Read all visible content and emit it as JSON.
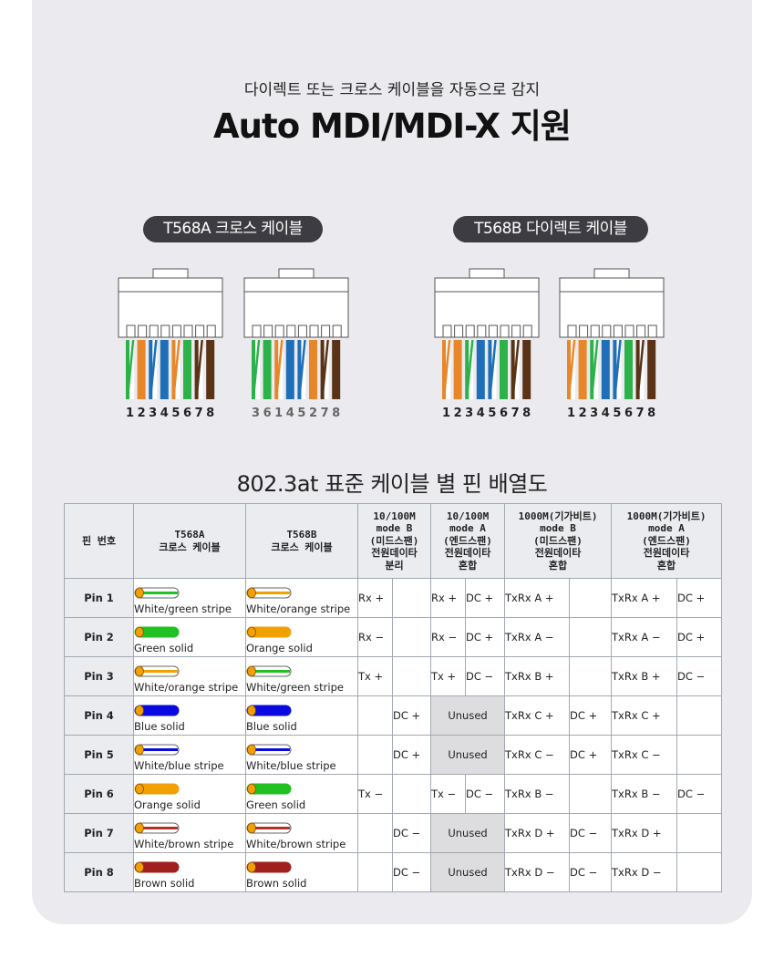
{
  "header": {
    "subtitle": "다이렉트 또는 크로스 케이블을 자동으로 감지",
    "title": "Auto MDI/MDI-X 지원"
  },
  "diagram": {
    "groups": [
      {
        "label": "T568A 크로스 케이블",
        "connectors": [
          {
            "numbers": "12345678",
            "wires": [
              "wg",
              "go",
              "wb",
              "b",
              "ow",
              "g",
              "wbr",
              "br"
            ]
          },
          {
            "numbers": "36145278",
            "wires": [
              "wg",
              "g",
              "wo",
              "b",
              "wb",
              "o",
              "wbr",
              "br"
            ]
          }
        ]
      },
      {
        "label": "T568B 다이렉트 케이블",
        "connectors": [
          {
            "numbers": "12345678",
            "wires": [
              "wo",
              "o",
              "wg",
              "b",
              "wb",
              "g",
              "wbr",
              "br"
            ]
          },
          {
            "numbers": "12345678",
            "wires": [
              "wo",
              "o",
              "wg",
              "b",
              "wb",
              "g",
              "wbr",
              "br"
            ]
          }
        ]
      }
    ],
    "colors": {
      "orange": "#e8862a",
      "green": "#2db24a",
      "blue": "#1e6fb8",
      "brown": "#5a3216"
    }
  },
  "table": {
    "heading": "802.3at 표준 케이블 별 핀 배열도",
    "headers": [
      [
        "핀 번호"
      ],
      [
        "T568A",
        "크로스 케이블"
      ],
      [
        "T568B",
        "크로스 케이블"
      ],
      [
        "10/100M",
        "mode B",
        "(미드스팬)",
        "전원데이타",
        "분리"
      ],
      [
        "10/100M",
        "mode A",
        "(엔드스팬)",
        "전원데이타",
        "혼합"
      ],
      [
        "1000M(기가비트)",
        "mode B",
        "(미드스팬)",
        "전원데이타",
        "혼합"
      ],
      [
        "1000M(기가비트)",
        "mode A",
        "(엔드스팬)",
        "전원데이타",
        "혼합"
      ]
    ],
    "unused_label": "Unused",
    "rows": [
      {
        "pin": "Pin 1",
        "a": {
          "text": "White/green stripe",
          "color": "#22c022",
          "stripe": true
        },
        "b": {
          "text": "White/orange stripe",
          "color": "#f0a000",
          "stripe": true
        },
        "m10b": [
          "Rx +",
          ""
        ],
        "m10a": [
          "Rx +",
          "DC +"
        ],
        "g1b": [
          "TxRx A +",
          ""
        ],
        "g1a": [
          "TxRx A +",
          "DC +"
        ]
      },
      {
        "pin": "Pin 2",
        "a": {
          "text": "Green solid",
          "color": "#22c022",
          "stripe": false
        },
        "b": {
          "text": "Orange solid",
          "color": "#f0a000",
          "stripe": false
        },
        "m10b": [
          "Rx −",
          ""
        ],
        "m10a": [
          "Rx −",
          "DC +"
        ],
        "g1b": [
          "TxRx A −",
          ""
        ],
        "g1a": [
          "TxRx A −",
          "DC +"
        ]
      },
      {
        "pin": "Pin 3",
        "a": {
          "text": "White/orange stripe",
          "color": "#f0a000",
          "stripe": true
        },
        "b": {
          "text": "White/green stripe",
          "color": "#22c022",
          "stripe": true
        },
        "m10b": [
          "Tx +",
          ""
        ],
        "m10a": [
          "Tx +",
          "DC −"
        ],
        "g1b": [
          "TxRx B +",
          ""
        ],
        "g1a": [
          "TxRx B +",
          "DC −"
        ]
      },
      {
        "pin": "Pin 4",
        "a": {
          "text": "Blue solid",
          "color": "#0a0ae0",
          "stripe": false
        },
        "b": {
          "text": "Blue solid",
          "color": "#0a0ae0",
          "stripe": false
        },
        "m10b": [
          "",
          "DC +"
        ],
        "m10a": null,
        "g1b": [
          "TxRx C +",
          "DC +"
        ],
        "g1a": [
          "TxRx C +",
          ""
        ]
      },
      {
        "pin": "Pin 5",
        "a": {
          "text": "White/blue stripe",
          "color": "#0a0ae0",
          "stripe": true
        },
        "b": {
          "text": "White/blue stripe",
          "color": "#0a0ae0",
          "stripe": true
        },
        "m10b": [
          "",
          "DC +"
        ],
        "m10a": null,
        "g1b": [
          "TxRx C −",
          "DC +"
        ],
        "g1a": [
          "TxRx C −",
          ""
        ]
      },
      {
        "pin": "Pin 6",
        "a": {
          "text": "Orange solid",
          "color": "#f0a000",
          "stripe": false
        },
        "b": {
          "text": "Green solid",
          "color": "#22c022",
          "stripe": false
        },
        "m10b": [
          "Tx −",
          ""
        ],
        "m10a": [
          "Tx −",
          "DC −"
        ],
        "g1b": [
          "TxRx B −",
          ""
        ],
        "g1a": [
          "TxRx B −",
          "DC −"
        ]
      },
      {
        "pin": "Pin 7",
        "a": {
          "text": "White/brown stripe",
          "color": "#b03030",
          "stripe": true
        },
        "b": {
          "text": "White/brown stripe",
          "color": "#b03030",
          "stripe": true
        },
        "m10b": [
          "",
          "DC −"
        ],
        "m10a": null,
        "g1b": [
          "TxRx D +",
          "DC −"
        ],
        "g1a": [
          "TxRx D +",
          ""
        ]
      },
      {
        "pin": "Pin 8",
        "a": {
          "text": "Brown solid",
          "color": "#a02020",
          "stripe": false
        },
        "b": {
          "text": "Brown solid",
          "color": "#a02020",
          "stripe": false
        },
        "m10b": [
          "",
          "DC −"
        ],
        "m10a": null,
        "g1b": [
          "TxRx D −",
          "DC −"
        ],
        "g1a": [
          "TxRx D −",
          ""
        ]
      }
    ]
  }
}
